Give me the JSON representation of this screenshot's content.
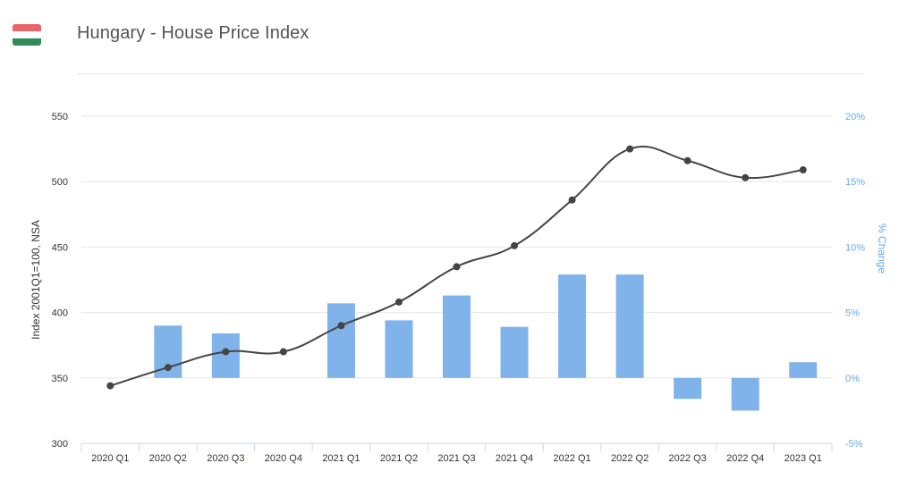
{
  "page": {
    "title": "Hungary - House Price Index",
    "flag_colors": [
      "#e8646a",
      "#ffffff",
      "#2e8b57"
    ]
  },
  "chart_data": {
    "type": "bar+line",
    "categories": [
      "2020 Q1",
      "2020 Q2",
      "2020 Q3",
      "2020 Q4",
      "2021 Q1",
      "2021 Q2",
      "2021 Q3",
      "2021 Q4",
      "2022 Q1",
      "2022 Q2",
      "2022 Q3",
      "2022 Q4",
      "2023 Q1"
    ],
    "y_left_ticks": [
      "550",
      "500",
      "450",
      "400",
      "350",
      "300"
    ],
    "y_right_ticks": [
      "20%",
      "15%",
      "10%",
      "5%",
      "0%",
      "-5%"
    ],
    "y_left_range": [
      300,
      550
    ],
    "y_right_range": [
      -5,
      20
    ],
    "ylabel_left": "Index 2001Q1=100, NSA",
    "ylabel_right": "% Change",
    "series": [
      {
        "kind": "line",
        "axis": "left",
        "color": "#444444",
        "values": [
          344,
          358,
          370,
          370,
          390,
          408,
          435,
          451,
          486,
          525,
          516,
          503,
          509
        ]
      },
      {
        "kind": "bar",
        "axis": "right",
        "color": "#7fb3ea",
        "values": [
          0.0,
          4.0,
          3.4,
          0.0,
          5.7,
          4.4,
          6.3,
          3.9,
          7.9,
          7.9,
          -1.6,
          -2.5,
          1.2
        ]
      }
    ],
    "grid": true
  }
}
